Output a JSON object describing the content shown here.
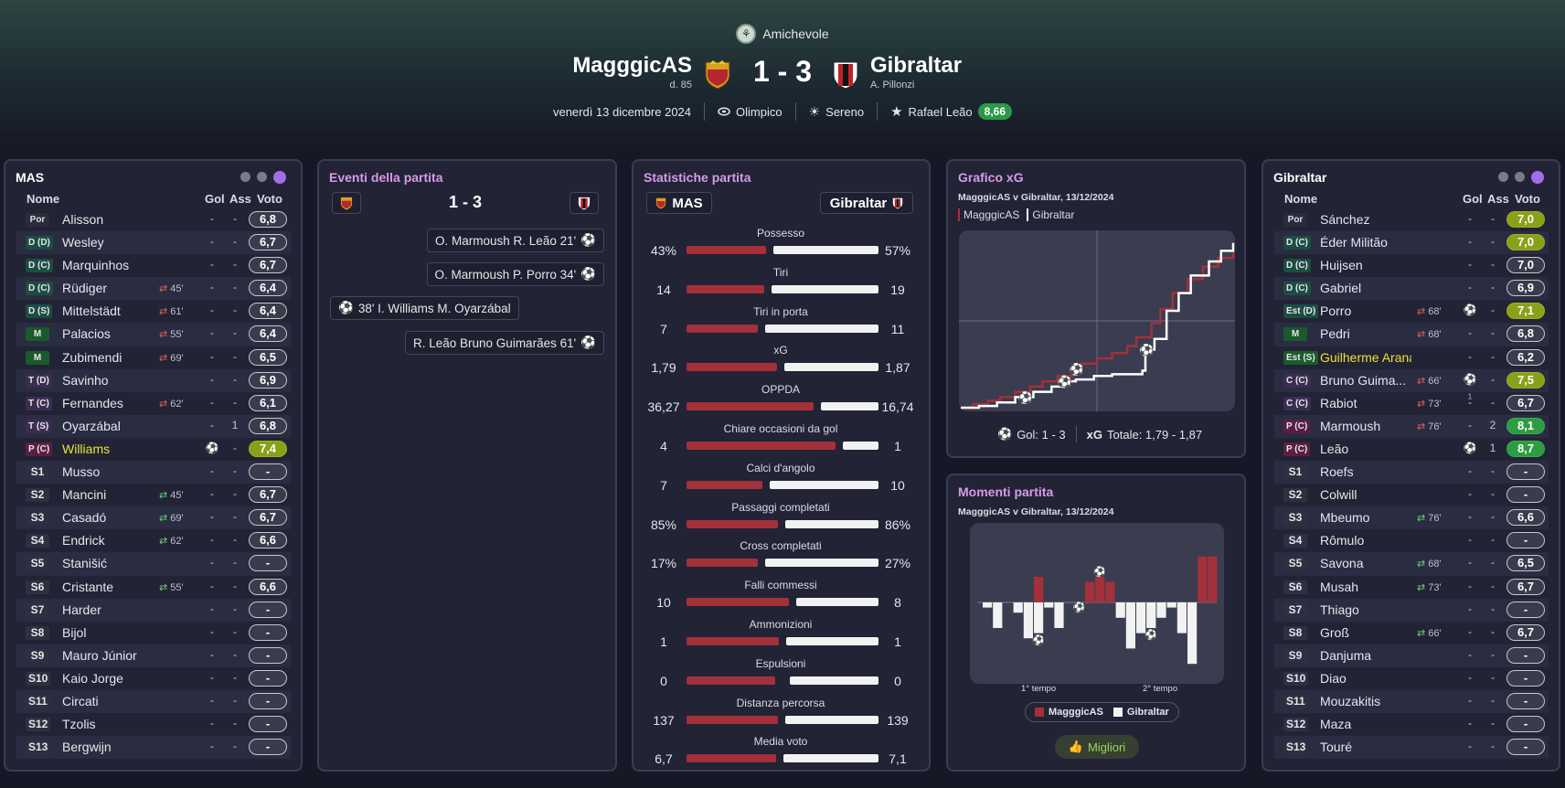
{
  "header": {
    "competition": "Amichevole",
    "home": {
      "name": "MagggicAS",
      "sub": "d. 85"
    },
    "away": {
      "name": "Gibraltar",
      "sub": "A. Pillonzi"
    },
    "score": "1 - 3",
    "date": "venerdì 13 dicembre 2024",
    "stadium": "Olimpico",
    "weather": "Sereno",
    "mvp": "Rafael Leão",
    "mvp_rating": "8,66",
    "colors": {
      "accent": "#d89ae8",
      "home_bar": "#a4303a",
      "away_bar": "#f2f2f2",
      "rating_green": "#2d9c42",
      "rating_yellow": "#8aa019"
    }
  },
  "lineup_home": {
    "title": "MAS",
    "cols": {
      "name": "Nome",
      "goals": "Gol",
      "assists": "Ass",
      "rating": "Voto"
    },
    "players": [
      {
        "pos": "Por",
        "cls": "gk",
        "name": "Alisson",
        "sub": "",
        "goals": "-",
        "ast": "-",
        "rating": "6,8",
        "rc": ""
      },
      {
        "pos": "D (D)",
        "cls": "df",
        "name": "Wesley",
        "sub": "",
        "goals": "-",
        "ast": "-",
        "rating": "6,7",
        "rc": ""
      },
      {
        "pos": "D (C)",
        "cls": "df",
        "name": "Marquinhos",
        "sub": "",
        "goals": "-",
        "ast": "-",
        "rating": "6,7",
        "rc": ""
      },
      {
        "pos": "D (C)",
        "cls": "df",
        "name": "Rüdiger",
        "sub": "45'",
        "subtype": "out",
        "goals": "-",
        "ast": "-",
        "rating": "6,4",
        "rc": ""
      },
      {
        "pos": "D (S)",
        "cls": "df",
        "name": "Mittelstädt",
        "sub": "61'",
        "subtype": "out",
        "goals": "-",
        "ast": "-",
        "rating": "6,4",
        "rc": ""
      },
      {
        "pos": "M",
        "cls": "mf",
        "name": "Palacios",
        "sub": "55'",
        "subtype": "out",
        "goals": "-",
        "ast": "-",
        "rating": "6,4",
        "rc": ""
      },
      {
        "pos": "M",
        "cls": "mf",
        "name": "Zubimendi",
        "sub": "69'",
        "subtype": "out",
        "goals": "-",
        "ast": "-",
        "rating": "6,5",
        "rc": ""
      },
      {
        "pos": "T (D)",
        "cls": "am",
        "name": "Savinho",
        "sub": "",
        "goals": "-",
        "ast": "-",
        "rating": "6,9",
        "rc": ""
      },
      {
        "pos": "T (C)",
        "cls": "am",
        "name": "Fernandes",
        "sub": "62'",
        "subtype": "out",
        "goals": "-",
        "ast": "-",
        "rating": "6,1",
        "rc": ""
      },
      {
        "pos": "T (S)",
        "cls": "am",
        "name": "Oyarzábal",
        "sub": "",
        "goals": "-",
        "ast": "1",
        "rating": "6,8",
        "rc": ""
      },
      {
        "pos": "P (C)",
        "cls": "fw",
        "name": "Williams",
        "hl": true,
        "sub": "",
        "goals": "ball1",
        "ast": "-",
        "rating": "7,4",
        "rc": "y"
      },
      {
        "pos": "S1",
        "cls": "sb",
        "name": "Musso",
        "sub": "",
        "goals": "-",
        "ast": "-",
        "rating": "-",
        "rc": ""
      },
      {
        "pos": "S2",
        "cls": "sb",
        "name": "Mancini",
        "sub": "45'",
        "subtype": "in",
        "goals": "-",
        "ast": "-",
        "rating": "6,7",
        "rc": ""
      },
      {
        "pos": "S3",
        "cls": "sb",
        "name": "Casadó",
        "sub": "69'",
        "subtype": "in",
        "goals": "-",
        "ast": "-",
        "rating": "6,7",
        "rc": ""
      },
      {
        "pos": "S4",
        "cls": "sb",
        "name": "Endrick",
        "sub": "62'",
        "subtype": "in",
        "goals": "-",
        "ast": "-",
        "rating": "6,6",
        "rc": ""
      },
      {
        "pos": "S5",
        "cls": "sb",
        "name": "Stanišić",
        "sub": "",
        "goals": "-",
        "ast": "-",
        "rating": "-",
        "rc": ""
      },
      {
        "pos": "S6",
        "cls": "sb",
        "name": "Cristante",
        "sub": "55'",
        "subtype": "in",
        "goals": "-",
        "ast": "-",
        "rating": "6,6",
        "rc": ""
      },
      {
        "pos": "S7",
        "cls": "sb",
        "name": "Harder",
        "sub": "",
        "goals": "-",
        "ast": "-",
        "rating": "-",
        "rc": ""
      },
      {
        "pos": "S8",
        "cls": "sb",
        "name": "Bijol",
        "sub": "",
        "goals": "-",
        "ast": "-",
        "rating": "-",
        "rc": ""
      },
      {
        "pos": "S9",
        "cls": "sb",
        "name": "Mauro Júnior",
        "sub": "",
        "goals": "-",
        "ast": "-",
        "rating": "-",
        "rc": ""
      },
      {
        "pos": "S10",
        "cls": "sb",
        "name": "Kaio Jorge",
        "sub": "",
        "goals": "-",
        "ast": "-",
        "rating": "-",
        "rc": ""
      },
      {
        "pos": "S11",
        "cls": "sb",
        "name": "Circati",
        "sub": "",
        "goals": "-",
        "ast": "-",
        "rating": "-",
        "rc": ""
      },
      {
        "pos": "S12",
        "cls": "sb",
        "name": "Tzolis",
        "sub": "",
        "goals": "-",
        "ast": "-",
        "rating": "-",
        "rc": ""
      },
      {
        "pos": "S13",
        "cls": "sb",
        "name": "Bergwijn",
        "sub": "",
        "goals": "-",
        "ast": "-",
        "rating": "-",
        "rc": ""
      }
    ]
  },
  "lineup_away": {
    "title": "Gibraltar",
    "cols": {
      "name": "Nome",
      "goals": "Gol",
      "assists": "Ass",
      "rating": "Voto"
    },
    "players": [
      {
        "pos": "Por",
        "cls": "gk",
        "name": "Sánchez",
        "sub": "",
        "goals": "-",
        "ast": "-",
        "rating": "7,0",
        "rc": "y"
      },
      {
        "pos": "D (C)",
        "cls": "df",
        "name": "Éder Militão",
        "sub": "",
        "goals": "-",
        "ast": "-",
        "rating": "7,0",
        "rc": "y"
      },
      {
        "pos": "D (C)",
        "cls": "df",
        "name": "Huijsen",
        "sub": "",
        "goals": "-",
        "ast": "-",
        "rating": "7,0",
        "rc": ""
      },
      {
        "pos": "D (C)",
        "cls": "df",
        "name": "Gabriel",
        "sub": "",
        "goals": "-",
        "ast": "-",
        "rating": "6,9",
        "rc": ""
      },
      {
        "pos": "Est (D)",
        "cls": "df",
        "name": "Porro",
        "sub": "68'",
        "subtype": "out",
        "goals": "ball1",
        "ast": "-",
        "rating": "7,1",
        "rc": "y"
      },
      {
        "pos": "M",
        "cls": "mf",
        "name": "Pedri",
        "sub": "68'",
        "subtype": "out",
        "goals": "-",
        "ast": "-",
        "rating": "6,8",
        "rc": ""
      },
      {
        "pos": "Est (S)",
        "cls": "mf",
        "name": "Guilherme Arana",
        "hl": true,
        "sub": "",
        "goals": "-",
        "ast": "-",
        "rating": "6,2",
        "rc": ""
      },
      {
        "pos": "C (C)",
        "cls": "am",
        "name": "Bruno Guima...",
        "sub": "66'",
        "subtype": "out",
        "goals": "ball1",
        "ast": "-",
        "rating": "7,5",
        "rc": "y"
      },
      {
        "pos": "C (C)",
        "cls": "am",
        "name": "Rabiot",
        "sub": "73'",
        "subtype": "out",
        "goals": "-",
        "ast": "-",
        "rating": "6,7",
        "rc": ""
      },
      {
        "pos": "P (C)",
        "cls": "fw",
        "name": "Marmoush",
        "sub": "76'",
        "subtype": "out",
        "goals": "-",
        "ast": "2",
        "rating": "8,1",
        "rc": "g"
      },
      {
        "pos": "P (C)",
        "cls": "fw",
        "name": "Leão",
        "sub": "",
        "goals": "ball1",
        "ast": "1",
        "rating": "8,7",
        "rc": "g"
      },
      {
        "pos": "S1",
        "cls": "sb",
        "name": "Roefs",
        "sub": "",
        "goals": "-",
        "ast": "-",
        "rating": "-",
        "rc": ""
      },
      {
        "pos": "S2",
        "cls": "sb",
        "name": "Colwill",
        "sub": "",
        "goals": "-",
        "ast": "-",
        "rating": "-",
        "rc": ""
      },
      {
        "pos": "S3",
        "cls": "sb",
        "name": "Mbeumo",
        "sub": "76'",
        "subtype": "in",
        "goals": "-",
        "ast": "-",
        "rating": "6,6",
        "rc": ""
      },
      {
        "pos": "S4",
        "cls": "sb",
        "name": "Rômulo",
        "sub": "",
        "goals": "-",
        "ast": "-",
        "rating": "-",
        "rc": ""
      },
      {
        "pos": "S5",
        "cls": "sb",
        "name": "Savona",
        "sub": "68'",
        "subtype": "in",
        "goals": "-",
        "ast": "-",
        "rating": "6,5",
        "rc": ""
      },
      {
        "pos": "S6",
        "cls": "sb",
        "name": "Musah",
        "sub": "73'",
        "subtype": "in",
        "goals": "-",
        "ast": "-",
        "rating": "6,7",
        "rc": ""
      },
      {
        "pos": "S7",
        "cls": "sb",
        "name": "Thiago",
        "sub": "",
        "goals": "-",
        "ast": "-",
        "rating": "-",
        "rc": ""
      },
      {
        "pos": "S8",
        "cls": "sb",
        "name": "Groß",
        "sub": "66'",
        "subtype": "in",
        "goals": "-",
        "ast": "-",
        "rating": "6,7",
        "rc": ""
      },
      {
        "pos": "S9",
        "cls": "sb",
        "name": "Danjuma",
        "sub": "",
        "goals": "-",
        "ast": "-",
        "rating": "-",
        "rc": ""
      },
      {
        "pos": "S10",
        "cls": "sb",
        "name": "Diao",
        "sub": "",
        "goals": "-",
        "ast": "-",
        "rating": "-",
        "rc": ""
      },
      {
        "pos": "S11",
        "cls": "sb",
        "name": "Mouzakitis",
        "sub": "",
        "goals": "-",
        "ast": "-",
        "rating": "-",
        "rc": ""
      },
      {
        "pos": "S12",
        "cls": "sb",
        "name": "Maza",
        "sub": "",
        "goals": "-",
        "ast": "-",
        "rating": "-",
        "rc": ""
      },
      {
        "pos": "S13",
        "cls": "sb",
        "name": "Touré",
        "sub": "",
        "goals": "-",
        "ast": "-",
        "rating": "-",
        "rc": ""
      }
    ]
  },
  "events": {
    "title": "Eventi della partita",
    "score": "1 - 3",
    "list": [
      {
        "side": "away",
        "text": "O. Marmoush  R. Leão  21'"
      },
      {
        "side": "away",
        "text": "O. Marmoush  P. Porro  34'"
      },
      {
        "side": "home",
        "text": "38'  I. Williams  M. Oyarzábal"
      },
      {
        "side": "away",
        "text": "R. Leão  Bruno Guimarães  61'"
      }
    ]
  },
  "stats": {
    "title": "Statistiche partita",
    "home_label": "MAS",
    "away_label": "Gibraltar",
    "rows": [
      {
        "label": "Possesso",
        "home": "43%",
        "away": "57%",
        "h": 43,
        "a": 57
      },
      {
        "label": "Tiri",
        "home": "14",
        "away": "19",
        "h": 14,
        "a": 19
      },
      {
        "label": "Tiri in porta",
        "home": "7",
        "away": "11",
        "h": 7,
        "a": 11
      },
      {
        "label": "xG",
        "home": "1,79",
        "away": "1,87",
        "h": 1.79,
        "a": 1.87
      },
      {
        "label": "OPPDA",
        "home": "36,27",
        "away": "16,74",
        "h": 36.27,
        "a": 16.74
      },
      {
        "label": "Chiare occasioni da gol",
        "home": "4",
        "away": "1",
        "h": 4,
        "a": 1
      },
      {
        "label": "Calci d'angolo",
        "home": "7",
        "away": "10",
        "h": 7,
        "a": 10
      },
      {
        "label": "Passaggi completati",
        "home": "85%",
        "away": "86%",
        "h": 85,
        "a": 86
      },
      {
        "label": "Cross completati",
        "home": "17%",
        "away": "27%",
        "h": 17,
        "a": 27
      },
      {
        "label": "Falli commessi",
        "home": "10",
        "away": "8",
        "h": 10,
        "a": 8
      },
      {
        "label": "Ammonizioni",
        "home": "1",
        "away": "1",
        "h": 1,
        "a": 1
      },
      {
        "label": "Espulsioni",
        "home": "0",
        "away": "0",
        "h": 0,
        "a": 0
      },
      {
        "label": "Distanza percorsa",
        "home": "137",
        "away": "139",
        "h": 137,
        "a": 139
      },
      {
        "label": "Media voto",
        "home": "6,7",
        "away": "7,1",
        "h": 6.7,
        "a": 7.1
      }
    ]
  },
  "xg_chart": {
    "title": "Grafico xG",
    "subtitle": "MagggicAS v Gibraltar, 13/12/2024",
    "legend_home": "MagggicAS",
    "legend_away": "Gibraltar",
    "goals_text": "Gol: 1 - 3",
    "xg_label": "xG",
    "totals_text": "Totale: 1,79 - 1,87"
  },
  "momentum": {
    "title": "Momenti partita",
    "subtitle": "MagggicAS v Gibraltar, 13/12/2024",
    "half1": "1° tempo",
    "half2": "2° tempo",
    "legend_home": "MagggicAS",
    "legend_away": "Gibraltar",
    "button": "Migliori"
  },
  "chart_data": [
    {
      "type": "line",
      "title": "Grafico xG",
      "x_range": [
        0,
        90
      ],
      "series": [
        {
          "name": "MagggicAS",
          "x": [
            0,
            4,
            9,
            13,
            18,
            23,
            27,
            32,
            37,
            40,
            45,
            50,
            55,
            58,
            63,
            66,
            70,
            75,
            80,
            85,
            90
          ],
          "y": [
            0,
            0.04,
            0.08,
            0.12,
            0.18,
            0.24,
            0.3,
            0.36,
            0.44,
            0.5,
            0.56,
            0.62,
            0.7,
            0.8,
            0.96,
            1.12,
            1.3,
            1.46,
            1.6,
            1.7,
            1.79
          ]
        },
        {
          "name": "Gibraltar",
          "x": [
            0,
            6,
            12,
            18,
            24,
            30,
            34,
            38,
            44,
            50,
            56,
            60,
            61,
            64,
            68,
            72,
            76,
            82,
            86,
            90
          ],
          "y": [
            0,
            0.02,
            0.06,
            0.12,
            0.18,
            0.24,
            0.3,
            0.32,
            0.36,
            0.38,
            0.38,
            0.42,
            0.66,
            0.78,
            1.1,
            1.3,
            1.5,
            1.66,
            1.78,
            1.87
          ]
        }
      ],
      "goals": [
        {
          "side": "away",
          "minute": 21
        },
        {
          "side": "away",
          "minute": 34
        },
        {
          "side": "home",
          "minute": 38
        },
        {
          "side": "away",
          "minute": 61
        }
      ]
    },
    {
      "type": "bar",
      "title": "Momenti partita",
      "series": [
        {
          "name": "MagggicAS",
          "values": [
            0,
            0,
            0,
            0,
            0,
            5,
            0,
            0,
            0,
            0,
            4,
            5,
            4,
            0,
            0,
            0,
            0,
            0,
            0,
            0,
            0,
            9,
            9
          ]
        },
        {
          "name": "Gibraltar",
          "values": [
            1,
            5,
            0,
            2,
            7,
            6,
            1,
            5,
            0,
            0,
            0,
            0,
            0,
            3,
            9,
            6,
            5,
            3,
            1,
            6,
            12,
            0,
            0
          ]
        }
      ]
    }
  ]
}
